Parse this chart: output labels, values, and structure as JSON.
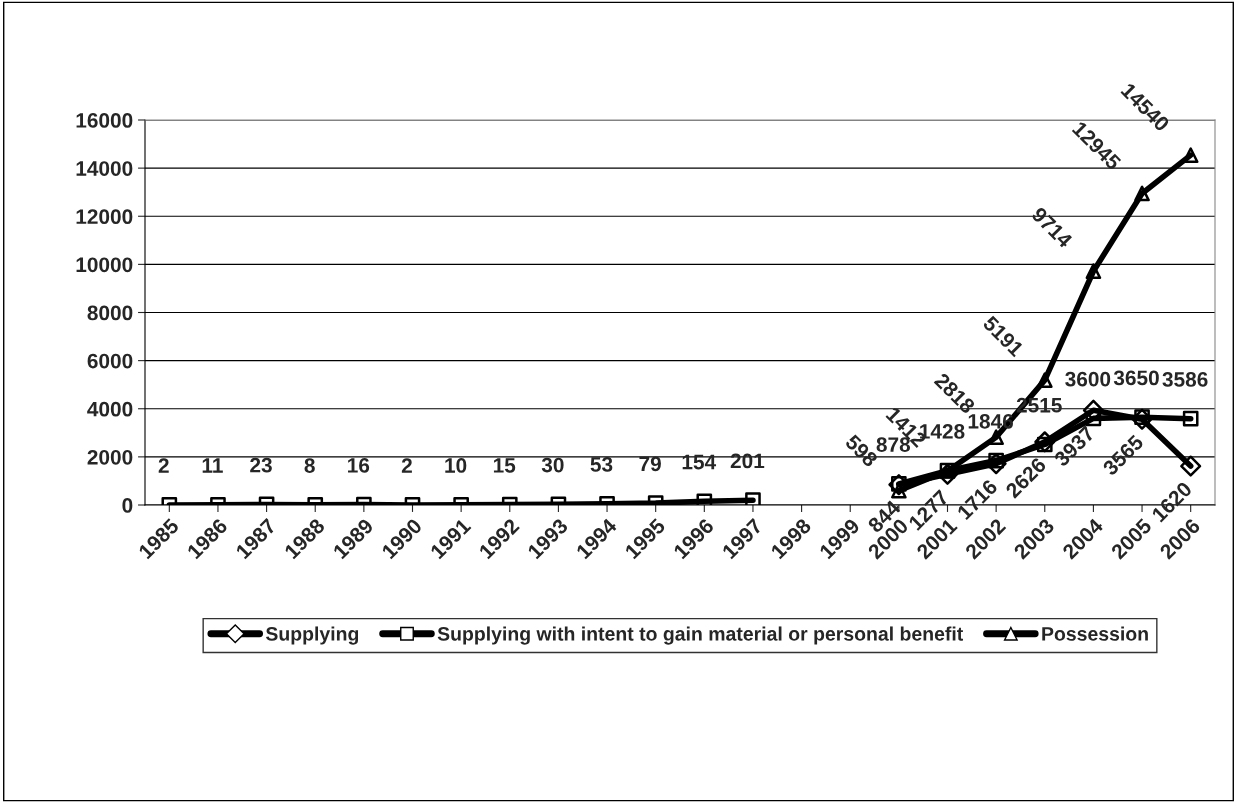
{
  "chart_data": {
    "type": "line",
    "categories": [
      "1985",
      "1986",
      "1987",
      "1988",
      "1989",
      "1990",
      "1991",
      "1992",
      "1993",
      "1994",
      "1995",
      "1996",
      "1997",
      "1998",
      "1999",
      "2000",
      "2001",
      "2002",
      "2003",
      "2004",
      "2005",
      "2006"
    ],
    "series": [
      {
        "name": "Supplying",
        "color": "#000000",
        "marker": "diamond",
        "values": [
          null,
          null,
          null,
          null,
          null,
          null,
          null,
          null,
          null,
          null,
          null,
          null,
          null,
          null,
          null,
          844,
          1277,
          1716,
          2626,
          3937,
          3565,
          1620
        ]
      },
      {
        "name": "Supplying with intent to gain material or personal benefit",
        "color": "#000000",
        "marker": "square",
        "values": [
          2,
          11,
          23,
          8,
          16,
          2,
          10,
          15,
          30,
          53,
          79,
          154,
          201,
          null,
          null,
          878,
          1428,
          1846,
          2515,
          3600,
          3650,
          3586
        ]
      },
      {
        "name": "Possession",
        "color": "#000000",
        "marker": "triangle",
        "values": [
          null,
          null,
          null,
          null,
          null,
          null,
          null,
          null,
          null,
          null,
          null,
          null,
          null,
          null,
          null,
          598,
          1412,
          2818,
          5191,
          9714,
          12945,
          14540
        ]
      }
    ],
    "ylim": [
      0,
      16000
    ],
    "yticks": [
      0,
      2000,
      4000,
      6000,
      8000,
      10000,
      12000,
      14000,
      16000
    ],
    "grid": "y",
    "legend": "bottom",
    "data_labels": true,
    "line_style": "solid"
  }
}
